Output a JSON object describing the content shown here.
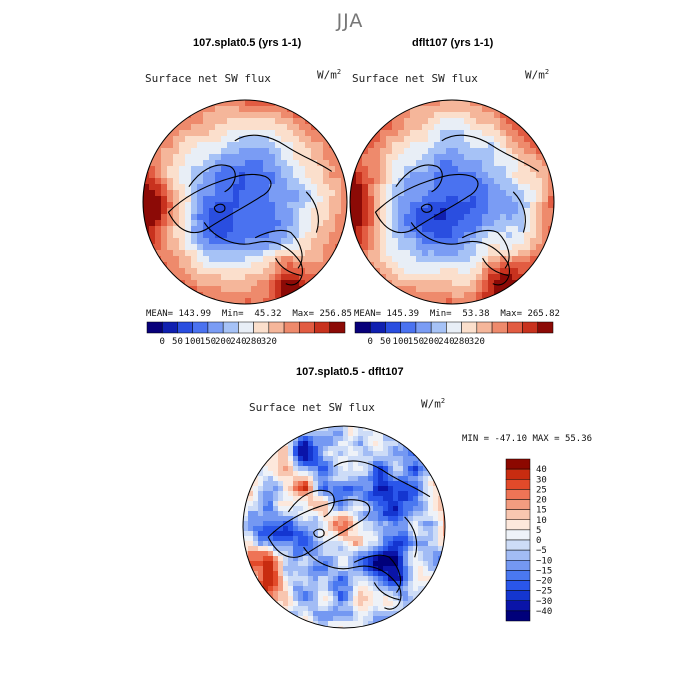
{
  "season": "JJA",
  "panels": {
    "left": {
      "title": "107.splat0.5 (yrs 1-1)",
      "variable": "Surface net SW flux",
      "units_base": "W/m",
      "units_exp": "2",
      "mean_label": "MEAN=",
      "mean": "143.99",
      "min_label": "Min=",
      "min": "45.32",
      "max_label": "Max=",
      "max": "256.85"
    },
    "right": {
      "title": "dflt107 (yrs 1-1)",
      "variable": "Surface net SW flux",
      "units_base": "W/m",
      "units_exp": "2",
      "mean_label": "MEAN=",
      "mean": "145.39",
      "min_label": "Min=",
      "min": "53.38",
      "max_label": "Max=",
      "max": "265.82"
    },
    "diff": {
      "title": "107.splat0.5 - dflt107",
      "variable": "Surface net SW flux",
      "units_base": "W/m",
      "units_exp": "2",
      "min_label": "MIN =",
      "min": "-47.10",
      "max_label": "MAX =",
      "max": "55.36"
    }
  },
  "colors": {
    "abs_scale": [
      "#08007a",
      "#1020b0",
      "#2a4ee0",
      "#4a72f0",
      "#7a9cf4",
      "#a6c2f6",
      "#e8eef6",
      "#fbdfcc",
      "#f5b69a",
      "#ee8a6c",
      "#e25c42",
      "#c8321e",
      "#8c0a06"
    ],
    "diff_scale": [
      "#00007a",
      "#0a14a8",
      "#1436d0",
      "#2a56ea",
      "#4a78f0",
      "#7498f2",
      "#a2bcf5",
      "#cddcf7",
      "#eef2f8",
      "#fde8dc",
      "#f8c6b0",
      "#f39c80",
      "#ee7456",
      "#e24a2a",
      "#c82c10",
      "#8c0800"
    ]
  },
  "chart_data": [
    {
      "type": "heatmap",
      "name": "left",
      "title": "107.splat0.5 (yrs 1-1)",
      "variable": "Surface net SW flux",
      "units": "W/m2",
      "projection": "north polar stereographic",
      "colorbar_ticks": [
        "0",
        "50",
        "100",
        "150",
        "200",
        "240",
        "280",
        "320"
      ],
      "mean": 143.99,
      "min": 45.32,
      "max": 256.85
    },
    {
      "type": "heatmap",
      "name": "right",
      "title": "dflt107 (yrs 1-1)",
      "variable": "Surface net SW flux",
      "units": "W/m2",
      "projection": "north polar stereographic",
      "colorbar_ticks": [
        "0",
        "50",
        "100",
        "150",
        "200",
        "240",
        "280",
        "320"
      ],
      "mean": 145.39,
      "min": 53.38,
      "max": 265.82
    },
    {
      "type": "heatmap",
      "name": "difference",
      "title": "107.splat0.5 - dflt107",
      "variable": "Surface net SW flux",
      "units": "W/m2",
      "projection": "north polar stereographic",
      "colorbar_ticks": [
        "40",
        "30",
        "25",
        "20",
        "15",
        "10",
        "5",
        "0",
        "−5",
        "−10",
        "−15",
        "−20",
        "−25",
        "−30",
        "−40"
      ],
      "min": -47.1,
      "max": 55.36
    }
  ]
}
